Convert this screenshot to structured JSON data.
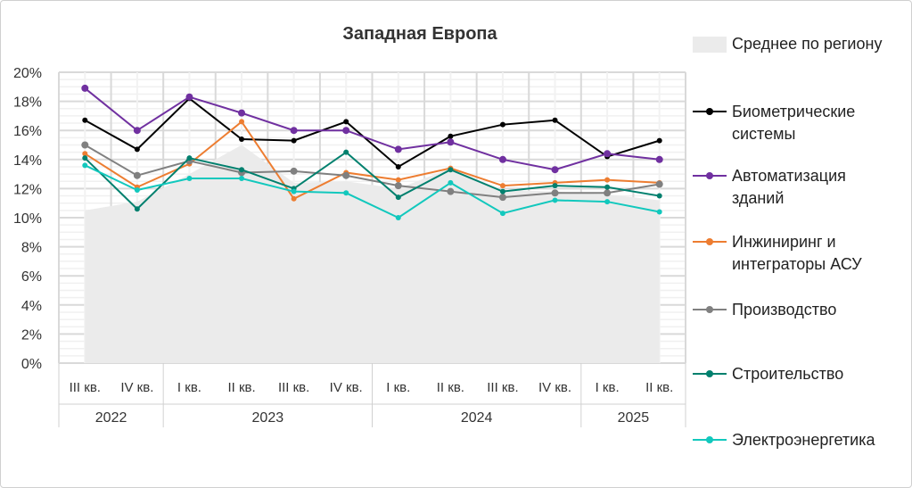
{
  "chart_data": {
    "type": "line",
    "title": "Западная Европа",
    "ylim": [
      0,
      20
    ],
    "yticks": [
      "0%",
      "2%",
      "4%",
      "6%",
      "8%",
      "10%",
      "12%",
      "14%",
      "16%",
      "18%",
      "20%"
    ],
    "categories": [
      "III кв.",
      "IV кв.",
      "I кв.",
      "II кв.",
      "III кв.",
      "IV кв.",
      "I кв.",
      "II кв.",
      "III кв.",
      "IV кв.",
      "I кв.",
      "II кв."
    ],
    "years": [
      {
        "label": "2022",
        "span": 2
      },
      {
        "label": "2023",
        "span": 4
      },
      {
        "label": "2024",
        "span": 4
      },
      {
        "label": "2025",
        "span": 2
      }
    ],
    "area": {
      "name": "Среднее по региону",
      "color": "#ebebeb",
      "values": [
        10.5,
        11.1,
        13.0,
        15.0,
        12.4,
        12.5,
        12.0,
        13.4,
        11.9,
        11.8,
        11.6,
        11.2
      ]
    },
    "series": [
      {
        "name": "Биометрические системы",
        "legend_lines": [
          "Биометрические",
          "системы"
        ],
        "color": "#000000",
        "values": [
          16.7,
          14.7,
          18.2,
          15.4,
          15.3,
          16.6,
          13.5,
          15.6,
          16.4,
          16.7,
          14.2,
          15.3
        ]
      },
      {
        "name": "Автоматизация зданий",
        "legend_lines": [
          "Автоматизация",
          "зданий"
        ],
        "color": "#7030a0",
        "values": [
          18.9,
          16.0,
          18.3,
          17.2,
          16.0,
          16.0,
          14.7,
          15.2,
          14.0,
          13.3,
          14.4,
          14.0
        ]
      },
      {
        "name": "Инжиниринг и интеграторы АСУ",
        "legend_lines": [
          "Инжиниринг и",
          "интеграторы АСУ"
        ],
        "color": "#ed7d31",
        "values": [
          14.4,
          12.1,
          13.7,
          16.6,
          11.3,
          13.1,
          12.6,
          13.4,
          12.2,
          12.4,
          12.6,
          12.4
        ]
      },
      {
        "name": "Производство",
        "legend_lines": [
          "Производство"
        ],
        "color": "#808080",
        "values": [
          15.0,
          12.9,
          13.9,
          13.1,
          13.2,
          12.9,
          12.2,
          11.8,
          11.4,
          11.7,
          11.7,
          12.3
        ]
      },
      {
        "name": "Строительство",
        "legend_lines": [
          "Строительство"
        ],
        "color": "#00806e",
        "values": [
          14.1,
          10.6,
          14.1,
          13.3,
          12.0,
          14.5,
          11.4,
          13.3,
          11.8,
          12.2,
          12.1,
          11.5
        ]
      },
      {
        "name": "Электроэнергетика",
        "legend_lines": [
          "Электроэнергетика"
        ],
        "color": "#12c8bd",
        "values": [
          13.6,
          11.9,
          12.7,
          12.7,
          11.8,
          11.7,
          10.0,
          12.4,
          10.3,
          11.2,
          11.1,
          10.4
        ]
      }
    ],
    "legend_position": "right",
    "grid": true
  }
}
